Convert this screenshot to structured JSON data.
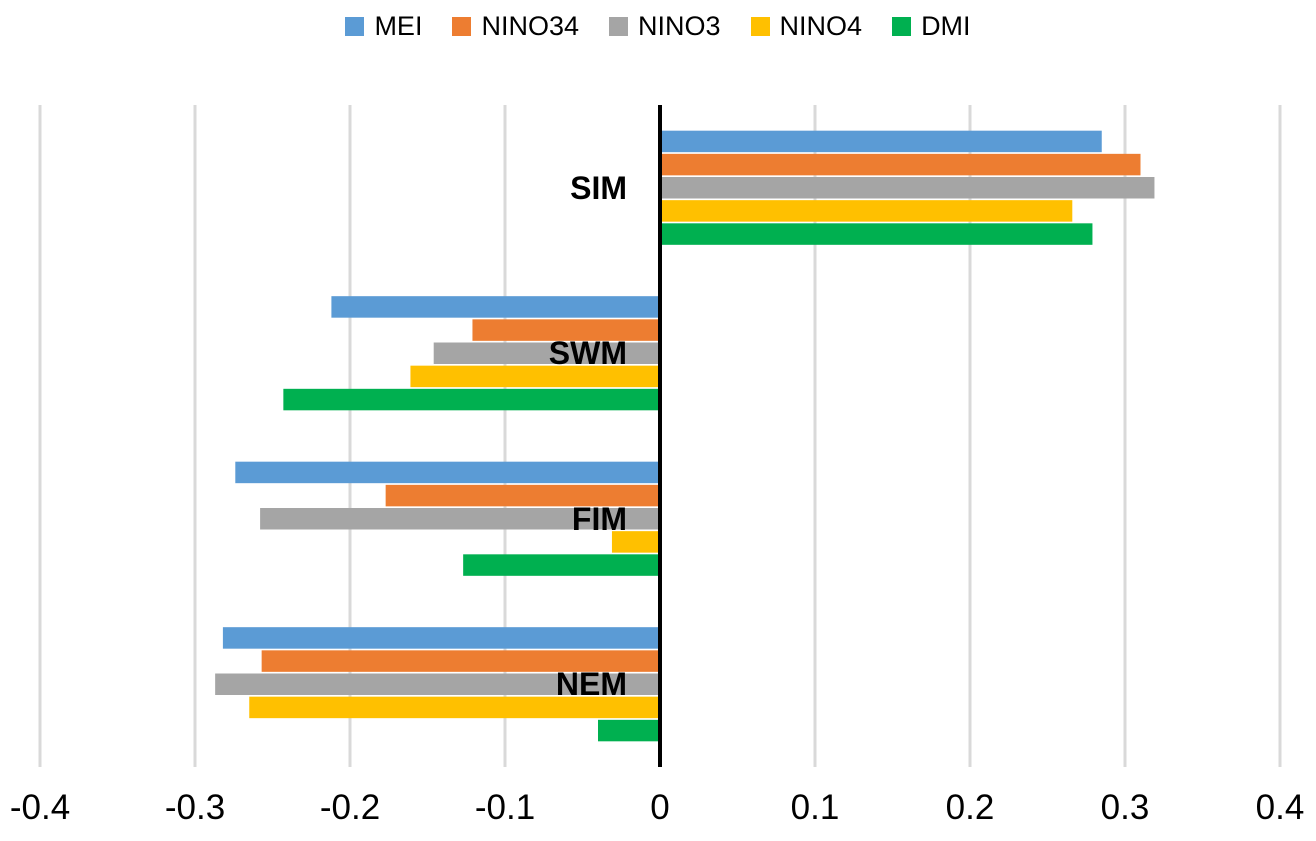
{
  "chart_data": {
    "type": "bar",
    "orientation": "horizontal",
    "title": "",
    "xlabel": "",
    "ylabel": "",
    "categories": [
      "SIM",
      "SWM",
      "FIM",
      "NEM"
    ],
    "series": [
      {
        "name": "MEI",
        "color": "#5B9BD5",
        "values": [
          0.285,
          -0.212,
          -0.274,
          -0.282
        ]
      },
      {
        "name": "NINO34",
        "color": "#ED7D31",
        "values": [
          0.31,
          -0.121,
          -0.177,
          -0.257
        ]
      },
      {
        "name": "NINO3",
        "color": "#A5A5A5",
        "values": [
          0.319,
          -0.146,
          -0.258,
          -0.287
        ]
      },
      {
        "name": "NINO4",
        "color": "#FFC000",
        "values": [
          0.266,
          -0.161,
          -0.031,
          -0.265
        ]
      },
      {
        "name": "DMI",
        "color": "#00B050",
        "values": [
          0.279,
          -0.243,
          -0.127,
          -0.04
        ]
      }
    ],
    "xlim": [
      -0.4,
      0.4
    ],
    "x_ticks": [
      -0.4,
      -0.3,
      -0.2,
      -0.1,
      0,
      0.1,
      0.2,
      0.3,
      0.4
    ],
    "x_tick_labels": [
      "-0.4",
      "-0.3",
      "-0.2",
      "-0.1",
      "0",
      "0.1",
      "0.2",
      "0.3",
      "0.4"
    ],
    "grid": true,
    "gridline_color": "#D9D9D9",
    "zero_axis_color": "#000000",
    "background_color": "#FFFFFF",
    "legend_position": "top"
  }
}
